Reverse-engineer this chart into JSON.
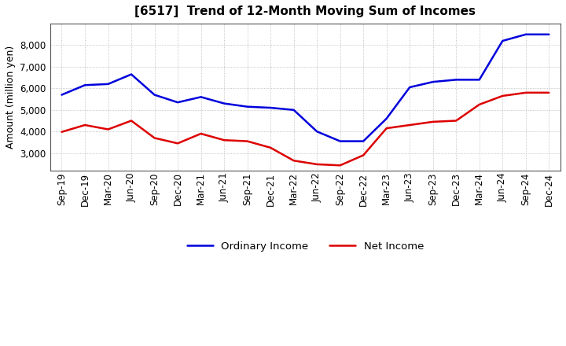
{
  "title": "[6517]  Trend of 12-Month Moving Sum of Incomes",
  "ylabel": "Amount (million yen)",
  "background_color": "#ffffff",
  "grid_color": "#aaaaaa",
  "x_labels": [
    "Sep-19",
    "Dec-19",
    "Mar-20",
    "Jun-20",
    "Sep-20",
    "Dec-20",
    "Mar-21",
    "Jun-21",
    "Sep-21",
    "Dec-21",
    "Mar-22",
    "Jun-22",
    "Sep-22",
    "Dec-22",
    "Mar-23",
    "Jun-23",
    "Sep-23",
    "Dec-23",
    "Mar-24",
    "Jun-24",
    "Sep-24",
    "Dec-24"
  ],
  "ordinary_income": [
    5700,
    6150,
    6200,
    6650,
    5700,
    5350,
    5600,
    5300,
    5150,
    5100,
    5000,
    4000,
    3550,
    3550,
    4600,
    6050,
    6300,
    6400,
    6400,
    8200,
    8500,
    8500
  ],
  "net_income": [
    3980,
    4300,
    4100,
    4500,
    3700,
    3450,
    3900,
    3600,
    3550,
    3250,
    2650,
    2480,
    2430,
    2900,
    4150,
    4300,
    4450,
    4500,
    5250,
    5650,
    5800,
    5800
  ],
  "ordinary_color": "#0000dd",
  "net_color": "#dd0000",
  "ylim_min": 2200,
  "ylim_max": 9000,
  "yticks": [
    3000,
    4000,
    5000,
    6000,
    7000,
    8000
  ],
  "line_width": 1.8,
  "title_fontsize": 11,
  "axis_fontsize": 8.5,
  "ylabel_fontsize": 9
}
